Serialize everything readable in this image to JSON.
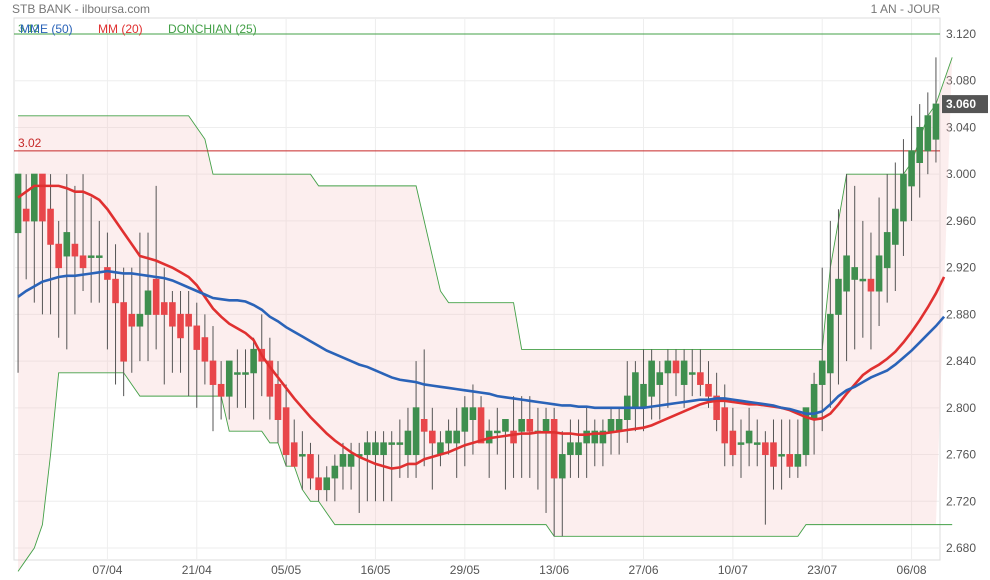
{
  "header": {
    "title": "STB BANK - ilboursa.com",
    "period": "1 AN - JOUR"
  },
  "legend": [
    {
      "label": "MME (50)",
      "color": "#2a63b8"
    },
    {
      "label": "MM (20)",
      "color": "#e03030"
    },
    {
      "label": "DONCHIAN (25)",
      "color": "#43a047"
    }
  ],
  "chart_data": {
    "type": "candlestick",
    "title": "STB BANK - ilboursa.com",
    "ylim": [
      2.67,
      3.13
    ],
    "y_ticks": [
      "3.120",
      "3.080",
      "3.040",
      "3.000",
      "2.960",
      "2.920",
      "2.880",
      "2.840",
      "2.800",
      "2.760",
      "2.720",
      "2.680"
    ],
    "x_ticks": [
      "07/04",
      "21/04",
      "05/05",
      "16/05",
      "29/05",
      "13/06",
      "27/06",
      "10/07",
      "23/07",
      "06/08"
    ],
    "x_tick_index": [
      11,
      22,
      33,
      44,
      55,
      66,
      77,
      88,
      99,
      110
    ],
    "last_price": "3.060",
    "hline": {
      "label": "3.02",
      "value": 3.02
    },
    "top_line": {
      "label": "3.12",
      "value": 3.12
    },
    "candles": [
      [
        2.95,
        3.0,
        2.83,
        3.0
      ],
      [
        2.97,
        3.0,
        2.91,
        2.96
      ],
      [
        2.96,
        3.0,
        2.89,
        3.0
      ],
      [
        3.0,
        3.0,
        2.88,
        2.96
      ],
      [
        2.97,
        3.0,
        2.88,
        2.94
      ],
      [
        2.94,
        2.96,
        2.86,
        2.92
      ],
      [
        2.93,
        3.0,
        2.85,
        2.95
      ],
      [
        2.94,
        2.99,
        2.88,
        2.93
      ],
      [
        2.93,
        3.0,
        2.9,
        2.92
      ],
      [
        2.93,
        2.98,
        2.89,
        2.93
      ],
      [
        2.93,
        2.96,
        2.89,
        2.93
      ],
      [
        2.92,
        2.95,
        2.85,
        2.91
      ],
      [
        2.91,
        2.94,
        2.82,
        2.89
      ],
      [
        2.89,
        2.92,
        2.81,
        2.84
      ],
      [
        2.88,
        2.92,
        2.83,
        2.87
      ],
      [
        2.87,
        2.95,
        2.84,
        2.88
      ],
      [
        2.88,
        2.95,
        2.84,
        2.9
      ],
      [
        2.91,
        2.99,
        2.85,
        2.88
      ],
      [
        2.89,
        2.92,
        2.82,
        2.88
      ],
      [
        2.89,
        2.9,
        2.83,
        2.87
      ],
      [
        2.88,
        2.9,
        2.83,
        2.86
      ],
      [
        2.88,
        2.9,
        2.81,
        2.87
      ],
      [
        2.87,
        2.89,
        2.8,
        2.85
      ],
      [
        2.86,
        2.88,
        2.82,
        2.84
      ],
      [
        2.84,
        2.87,
        2.78,
        2.82
      ],
      [
        2.82,
        2.84,
        2.79,
        2.81
      ],
      [
        2.81,
        2.84,
        2.79,
        2.84
      ],
      [
        2.83,
        2.85,
        2.8,
        2.83
      ],
      [
        2.83,
        2.85,
        2.8,
        2.83
      ],
      [
        2.83,
        2.86,
        2.79,
        2.85
      ],
      [
        2.85,
        2.88,
        2.81,
        2.84
      ],
      [
        2.84,
        2.86,
        2.79,
        2.81
      ],
      [
        2.82,
        2.84,
        2.77,
        2.79
      ],
      [
        2.8,
        2.82,
        2.75,
        2.76
      ],
      [
        2.77,
        2.79,
        2.75,
        2.75
      ],
      [
        2.76,
        2.78,
        2.73,
        2.76
      ],
      [
        2.76,
        2.77,
        2.73,
        2.74
      ],
      [
        2.74,
        2.76,
        2.72,
        2.73
      ],
      [
        2.73,
        2.75,
        2.72,
        2.74
      ],
      [
        2.74,
        2.76,
        2.72,
        2.75
      ],
      [
        2.75,
        2.77,
        2.73,
        2.76
      ],
      [
        2.75,
        2.77,
        2.73,
        2.76
      ],
      [
        2.76,
        2.77,
        2.71,
        2.76
      ],
      [
        2.76,
        2.78,
        2.72,
        2.77
      ],
      [
        2.76,
        2.78,
        2.72,
        2.77
      ],
      [
        2.76,
        2.78,
        2.72,
        2.77
      ],
      [
        2.77,
        2.78,
        2.72,
        2.77
      ],
      [
        2.77,
        2.79,
        2.74,
        2.77
      ],
      [
        2.76,
        2.8,
        2.74,
        2.78
      ],
      [
        2.76,
        2.84,
        2.74,
        2.8
      ],
      [
        2.79,
        2.85,
        2.75,
        2.78
      ],
      [
        2.78,
        2.8,
        2.73,
        2.77
      ],
      [
        2.76,
        2.78,
        2.75,
        2.77
      ],
      [
        2.77,
        2.79,
        2.76,
        2.78
      ],
      [
        2.77,
        2.8,
        2.74,
        2.78
      ],
      [
        2.78,
        2.81,
        2.75,
        2.8
      ],
      [
        2.79,
        2.82,
        2.76,
        2.8
      ],
      [
        2.8,
        2.81,
        2.77,
        2.77
      ],
      [
        2.77,
        2.79,
        2.74,
        2.78
      ],
      [
        2.78,
        2.8,
        2.76,
        2.78
      ],
      [
        2.78,
        2.79,
        2.73,
        2.79
      ],
      [
        2.78,
        2.81,
        2.74,
        2.77
      ],
      [
        2.78,
        2.81,
        2.74,
        2.79
      ],
      [
        2.79,
        2.81,
        2.74,
        2.78
      ],
      [
        2.78,
        2.8,
        2.73,
        2.78
      ],
      [
        2.78,
        2.8,
        2.71,
        2.79
      ],
      [
        2.79,
        2.8,
        2.69,
        2.74
      ],
      [
        2.74,
        2.78,
        2.69,
        2.76
      ],
      [
        2.76,
        2.79,
        2.74,
        2.77
      ],
      [
        2.76,
        2.79,
        2.74,
        2.77
      ],
      [
        2.77,
        2.8,
        2.74,
        2.78
      ],
      [
        2.77,
        2.79,
        2.75,
        2.78
      ],
      [
        2.77,
        2.79,
        2.75,
        2.78
      ],
      [
        2.78,
        2.8,
        2.76,
        2.79
      ],
      [
        2.78,
        2.8,
        2.76,
        2.79
      ],
      [
        2.79,
        2.84,
        2.77,
        2.81
      ],
      [
        2.8,
        2.84,
        2.78,
        2.83
      ],
      [
        2.8,
        2.85,
        2.78,
        2.82
      ],
      [
        2.81,
        2.85,
        2.79,
        2.84
      ],
      [
        2.82,
        2.84,
        2.79,
        2.83
      ],
      [
        2.83,
        2.85,
        2.8,
        2.84
      ],
      [
        2.84,
        2.85,
        2.81,
        2.83
      ],
      [
        2.82,
        2.85,
        2.8,
        2.84
      ],
      [
        2.83,
        2.85,
        2.81,
        2.83
      ],
      [
        2.83,
        2.85,
        2.81,
        2.82
      ],
      [
        2.82,
        2.84,
        2.8,
        2.81
      ],
      [
        2.81,
        2.83,
        2.78,
        2.79
      ],
      [
        2.8,
        2.82,
        2.75,
        2.77
      ],
      [
        2.78,
        2.8,
        2.75,
        2.76
      ],
      [
        2.77,
        2.79,
        2.74,
        2.77
      ],
      [
        2.77,
        2.8,
        2.75,
        2.78
      ],
      [
        2.77,
        2.79,
        2.75,
        2.77
      ],
      [
        2.77,
        2.78,
        2.7,
        2.76
      ],
      [
        2.77,
        2.79,
        2.73,
        2.75
      ],
      [
        2.76,
        2.79,
        2.73,
        2.76
      ],
      [
        2.76,
        2.79,
        2.74,
        2.75
      ],
      [
        2.75,
        2.79,
        2.74,
        2.76
      ],
      [
        2.76,
        2.8,
        2.75,
        2.8
      ],
      [
        2.79,
        2.83,
        2.76,
        2.82
      ],
      [
        2.82,
        2.92,
        2.78,
        2.84
      ],
      [
        2.83,
        2.96,
        2.8,
        2.88
      ],
      [
        2.88,
        2.97,
        2.82,
        2.91
      ],
      [
        2.9,
        3.0,
        2.84,
        2.93
      ],
      [
        2.91,
        2.99,
        2.85,
        2.92
      ],
      [
        2.91,
        2.96,
        2.86,
        2.91
      ],
      [
        2.91,
        2.95,
        2.85,
        2.9
      ],
      [
        2.9,
        2.98,
        2.87,
        2.93
      ],
      [
        2.92,
        3.0,
        2.89,
        2.95
      ],
      [
        2.94,
        3.01,
        2.9,
        2.97
      ],
      [
        2.96,
        3.03,
        2.93,
        3.0
      ],
      [
        2.99,
        3.05,
        2.96,
        3.02
      ],
      [
        3.01,
        3.06,
        2.98,
        3.04
      ],
      [
        3.02,
        3.07,
        3.0,
        3.05
      ],
      [
        3.03,
        3.1,
        3.01,
        3.06
      ]
    ],
    "donchian_upper": [
      3.05,
      3.05,
      3.05,
      3.05,
      3.05,
      3.05,
      3.05,
      3.05,
      3.05,
      3.05,
      3.05,
      3.05,
      3.05,
      3.05,
      3.05,
      3.05,
      3.05,
      3.05,
      3.05,
      3.05,
      3.05,
      3.05,
      3.04,
      3.03,
      3.0,
      3.0,
      3.0,
      3.0,
      3.0,
      3.0,
      3.0,
      3.0,
      3.0,
      3.0,
      3.0,
      3.0,
      3.0,
      2.99,
      2.99,
      2.99,
      2.99,
      2.99,
      2.99,
      2.99,
      2.99,
      2.99,
      2.99,
      2.99,
      2.99,
      2.99,
      2.96,
      2.93,
      2.9,
      2.89,
      2.89,
      2.89,
      2.89,
      2.89,
      2.89,
      2.89,
      2.89,
      2.89,
      2.85,
      2.85,
      2.85,
      2.85,
      2.85,
      2.85,
      2.85,
      2.85,
      2.85,
      2.85,
      2.85,
      2.85,
      2.85,
      2.85,
      2.85,
      2.85,
      2.85,
      2.85,
      2.85,
      2.85,
      2.85,
      2.85,
      2.85,
      2.85,
      2.85,
      2.85,
      2.85,
      2.85,
      2.85,
      2.85,
      2.85,
      2.85,
      2.85,
      2.85,
      2.85,
      2.85,
      2.85,
      2.85,
      2.92,
      2.96,
      3.0,
      3.0,
      3.0,
      3.0,
      3.0,
      3.0,
      3.0,
      3.0,
      3.01,
      3.03,
      3.05,
      3.06,
      3.08,
      3.1
    ],
    "donchian_lower": [
      2.66,
      2.67,
      2.68,
      2.7,
      2.76,
      2.83,
      2.83,
      2.83,
      2.83,
      2.83,
      2.83,
      2.83,
      2.83,
      2.83,
      2.82,
      2.81,
      2.81,
      2.81,
      2.81,
      2.81,
      2.81,
      2.81,
      2.81,
      2.81,
      2.81,
      2.81,
      2.78,
      2.78,
      2.78,
      2.78,
      2.78,
      2.77,
      2.77,
      2.75,
      2.75,
      2.73,
      2.72,
      2.72,
      2.71,
      2.7,
      2.7,
      2.7,
      2.7,
      2.7,
      2.7,
      2.7,
      2.7,
      2.7,
      2.7,
      2.7,
      2.7,
      2.7,
      2.7,
      2.7,
      2.7,
      2.7,
      2.7,
      2.7,
      2.7,
      2.7,
      2.7,
      2.7,
      2.7,
      2.7,
      2.7,
      2.7,
      2.69,
      2.69,
      2.69,
      2.69,
      2.69,
      2.69,
      2.69,
      2.69,
      2.69,
      2.69,
      2.69,
      2.69,
      2.69,
      2.69,
      2.69,
      2.69,
      2.69,
      2.69,
      2.69,
      2.69,
      2.69,
      2.69,
      2.69,
      2.69,
      2.69,
      2.69,
      2.69,
      2.69,
      2.69,
      2.69,
      2.69,
      2.7,
      2.7,
      2.7,
      2.7,
      2.7,
      2.7,
      2.7,
      2.7,
      2.7,
      2.7,
      2.7,
      2.7,
      2.7,
      2.7,
      2.7,
      2.7,
      2.7,
      2.7,
      2.7
    ],
    "mm20": [
      2.98,
      2.985,
      2.99,
      2.99,
      2.99,
      2.99,
      2.988,
      2.985,
      2.985,
      2.982,
      2.978,
      2.97,
      2.96,
      2.95,
      2.94,
      2.93,
      2.928,
      2.926,
      2.923,
      2.92,
      2.916,
      2.912,
      2.905,
      2.895,
      2.885,
      2.878,
      2.872,
      2.868,
      2.864,
      2.858,
      2.845,
      2.835,
      2.826,
      2.817,
      2.808,
      2.8,
      2.792,
      2.785,
      2.778,
      2.772,
      2.767,
      2.762,
      2.758,
      2.755,
      2.752,
      2.75,
      2.748,
      2.749,
      2.752,
      2.752,
      2.756,
      2.758,
      2.76,
      2.762,
      2.765,
      2.768,
      2.77,
      2.772,
      2.774,
      2.775,
      2.776,
      2.777,
      2.778,
      2.778,
      2.779,
      2.779,
      2.779,
      2.778,
      2.778,
      2.777,
      2.777,
      2.778,
      2.778,
      2.779,
      2.78,
      2.781,
      2.782,
      2.783,
      2.785,
      2.788,
      2.791,
      2.794,
      2.797,
      2.8,
      2.803,
      2.805,
      2.806,
      2.806,
      2.805,
      2.804,
      2.803,
      2.803,
      2.802,
      2.801,
      2.8,
      2.798,
      2.795,
      2.792,
      2.79,
      2.791,
      2.795,
      2.803,
      2.812,
      2.82,
      2.828,
      2.833,
      2.837,
      2.842,
      2.848,
      2.856,
      2.865,
      2.875,
      2.886,
      2.898,
      2.912
    ],
    "mme50": [
      2.895,
      2.9,
      2.904,
      2.908,
      2.91,
      2.912,
      2.913,
      2.913,
      2.914,
      2.915,
      2.916,
      2.917,
      2.916,
      2.915,
      2.915,
      2.914,
      2.913,
      2.912,
      2.911,
      2.909,
      2.906,
      2.903,
      2.9,
      2.897,
      2.894,
      2.893,
      2.892,
      2.892,
      2.891,
      2.888,
      2.884,
      2.878,
      2.874,
      2.869,
      2.865,
      2.861,
      2.857,
      2.853,
      2.849,
      2.846,
      2.843,
      2.84,
      2.837,
      2.835,
      2.832,
      2.829,
      2.826,
      2.824,
      2.823,
      2.822,
      2.82,
      2.819,
      2.818,
      2.817,
      2.816,
      2.815,
      2.814,
      2.813,
      2.812,
      2.81,
      2.809,
      2.808,
      2.807,
      2.806,
      2.805,
      2.804,
      2.803,
      2.802,
      2.802,
      2.801,
      2.801,
      2.8,
      2.8,
      2.8,
      2.8,
      2.8,
      2.8,
      2.8,
      2.801,
      2.802,
      2.803,
      2.804,
      2.805,
      2.806,
      2.807,
      2.807,
      2.808,
      2.808,
      2.807,
      2.806,
      2.805,
      2.804,
      2.803,
      2.802,
      2.8,
      2.799,
      2.797,
      2.795,
      2.795,
      2.797,
      2.803,
      2.81,
      2.815,
      2.818,
      2.822,
      2.826,
      2.829,
      2.832,
      2.837,
      2.843,
      2.849,
      2.856,
      2.863,
      2.87,
      2.878
    ]
  }
}
